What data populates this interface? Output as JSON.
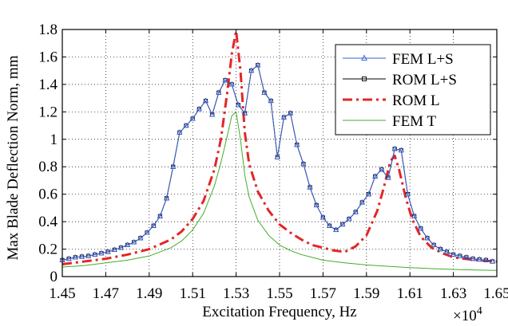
{
  "chart_data": {
    "type": "line",
    "xlabel": "Excitation Frequency, Hz",
    "ylabel": "Max Blade Deflection Norm, mm",
    "x_multiplier_base": "×10",
    "x_multiplier_exp": "4",
    "xlim": [
      1.45,
      1.65
    ],
    "ylim": [
      0,
      1.8
    ],
    "grid": "dotted",
    "legend_position": "top-right",
    "x_ticks": [
      1.45,
      1.47,
      1.49,
      1.51,
      1.53,
      1.55,
      1.57,
      1.59,
      1.61,
      1.63,
      1.65
    ],
    "y_ticks": [
      0,
      0.2,
      0.4,
      0.6,
      0.8,
      1,
      1.2,
      1.4,
      1.6,
      1.8
    ],
    "x_tick_labels": [
      "1.45",
      "1.47",
      "1.49",
      "1.51",
      "1.53",
      "1.55",
      "1.57",
      "1.59",
      "1.61",
      "1.63",
      "1.65"
    ],
    "y_tick_labels": [
      "0",
      "0.2",
      "0.4",
      "0.6",
      "0.8",
      "1",
      "1.2",
      "1.4",
      "1.6",
      "1.8"
    ],
    "series": [
      {
        "name": "FEM L+S",
        "color": "#3a5fcd",
        "style": "solid",
        "marker": "triangle",
        "x": [
          1.45,
          1.453,
          1.456,
          1.459,
          1.462,
          1.465,
          1.468,
          1.471,
          1.474,
          1.477,
          1.48,
          1.483,
          1.486,
          1.489,
          1.492,
          1.495,
          1.498,
          1.501,
          1.504,
          1.507,
          1.51,
          1.513,
          1.516,
          1.519,
          1.522,
          1.525,
          1.528,
          1.531,
          1.534,
          1.537,
          1.54,
          1.543,
          1.546,
          1.549,
          1.552,
          1.555,
          1.558,
          1.561,
          1.564,
          1.567,
          1.57,
          1.573,
          1.576,
          1.579,
          1.582,
          1.585,
          1.588,
          1.591,
          1.594,
          1.597,
          1.6,
          1.603,
          1.606,
          1.609,
          1.612,
          1.615,
          1.618,
          1.621,
          1.624,
          1.627,
          1.63,
          1.633,
          1.636,
          1.639,
          1.642,
          1.645,
          1.648
        ],
        "y": [
          0.12,
          0.13,
          0.14,
          0.145,
          0.15,
          0.16,
          0.17,
          0.18,
          0.195,
          0.21,
          0.23,
          0.25,
          0.28,
          0.32,
          0.37,
          0.44,
          0.57,
          0.8,
          1.05,
          1.1,
          1.15,
          1.22,
          1.28,
          1.18,
          1.34,
          1.43,
          1.4,
          1.25,
          1.19,
          1.5,
          1.54,
          1.34,
          1.28,
          0.87,
          1.16,
          1.19,
          0.96,
          0.82,
          0.65,
          0.52,
          0.43,
          0.37,
          0.34,
          0.38,
          0.42,
          0.47,
          0.54,
          0.6,
          0.73,
          0.78,
          0.72,
          0.93,
          0.92,
          0.6,
          0.44,
          0.35,
          0.28,
          0.23,
          0.2,
          0.18,
          0.16,
          0.15,
          0.14,
          0.13,
          0.125,
          0.12,
          0.11
        ]
      },
      {
        "name": "ROM L+S",
        "color": "#000000",
        "style": "solid",
        "marker": "square",
        "x": [
          1.45,
          1.453,
          1.456,
          1.459,
          1.462,
          1.465,
          1.468,
          1.471,
          1.474,
          1.477,
          1.48,
          1.483,
          1.486,
          1.489,
          1.492,
          1.495,
          1.498,
          1.501,
          1.504,
          1.507,
          1.51,
          1.513,
          1.516,
          1.519,
          1.522,
          1.525,
          1.528,
          1.531,
          1.534,
          1.537,
          1.54,
          1.543,
          1.546,
          1.549,
          1.552,
          1.555,
          1.558,
          1.561,
          1.564,
          1.567,
          1.57,
          1.573,
          1.576,
          1.579,
          1.582,
          1.585,
          1.588,
          1.591,
          1.594,
          1.597,
          1.6,
          1.603,
          1.606,
          1.609,
          1.612,
          1.615,
          1.618,
          1.621,
          1.624,
          1.627,
          1.63,
          1.633,
          1.636,
          1.639,
          1.642,
          1.645,
          1.648
        ],
        "y": [
          0.12,
          0.13,
          0.14,
          0.145,
          0.15,
          0.16,
          0.17,
          0.18,
          0.195,
          0.21,
          0.23,
          0.25,
          0.28,
          0.32,
          0.37,
          0.44,
          0.57,
          0.8,
          1.05,
          1.1,
          1.15,
          1.22,
          1.28,
          1.18,
          1.34,
          1.43,
          1.4,
          1.25,
          1.19,
          1.5,
          1.54,
          1.34,
          1.28,
          0.87,
          1.16,
          1.19,
          0.96,
          0.82,
          0.65,
          0.52,
          0.43,
          0.37,
          0.34,
          0.38,
          0.42,
          0.47,
          0.54,
          0.6,
          0.73,
          0.78,
          0.72,
          0.93,
          0.92,
          0.6,
          0.44,
          0.35,
          0.28,
          0.23,
          0.2,
          0.18,
          0.16,
          0.15,
          0.14,
          0.13,
          0.125,
          0.12,
          0.11
        ]
      },
      {
        "name": "ROM L",
        "color": "#e32626",
        "style": "dashdot",
        "marker": "none",
        "x": [
          1.45,
          1.46,
          1.47,
          1.48,
          1.49,
          1.5,
          1.505,
          1.51,
          1.515,
          1.52,
          1.523,
          1.526,
          1.528,
          1.53,
          1.532,
          1.534,
          1.536,
          1.54,
          1.545,
          1.55,
          1.555,
          1.56,
          1.565,
          1.57,
          1.575,
          1.58,
          1.585,
          1.59,
          1.595,
          1.598,
          1.601,
          1.603,
          1.605,
          1.608,
          1.611,
          1.615,
          1.62,
          1.625,
          1.63,
          1.64,
          1.65
        ],
        "y": [
          0.09,
          0.11,
          0.13,
          0.16,
          0.2,
          0.27,
          0.33,
          0.42,
          0.55,
          0.78,
          1.0,
          1.35,
          1.62,
          1.79,
          1.5,
          1.05,
          0.82,
          0.62,
          0.48,
          0.38,
          0.32,
          0.27,
          0.23,
          0.21,
          0.19,
          0.18,
          0.22,
          0.3,
          0.48,
          0.65,
          0.84,
          0.88,
          0.78,
          0.58,
          0.42,
          0.29,
          0.21,
          0.17,
          0.14,
          0.12,
          0.11
        ]
      },
      {
        "name": "FEM T",
        "color": "#3fae29",
        "style": "solid",
        "marker": "none",
        "x": [
          1.45,
          1.46,
          1.47,
          1.48,
          1.49,
          1.5,
          1.505,
          1.51,
          1.515,
          1.52,
          1.523,
          1.526,
          1.528,
          1.53,
          1.532,
          1.534,
          1.536,
          1.54,
          1.545,
          1.55,
          1.555,
          1.56,
          1.57,
          1.58,
          1.59,
          1.6,
          1.61,
          1.62,
          1.63,
          1.64,
          1.65
        ],
        "y": [
          0.07,
          0.08,
          0.1,
          0.12,
          0.15,
          0.21,
          0.26,
          0.34,
          0.46,
          0.66,
          0.83,
          1.03,
          1.17,
          1.2,
          1.0,
          0.74,
          0.58,
          0.41,
          0.3,
          0.23,
          0.19,
          0.16,
          0.12,
          0.1,
          0.085,
          0.075,
          0.065,
          0.058,
          0.052,
          0.048,
          0.045
        ]
      }
    ]
  }
}
